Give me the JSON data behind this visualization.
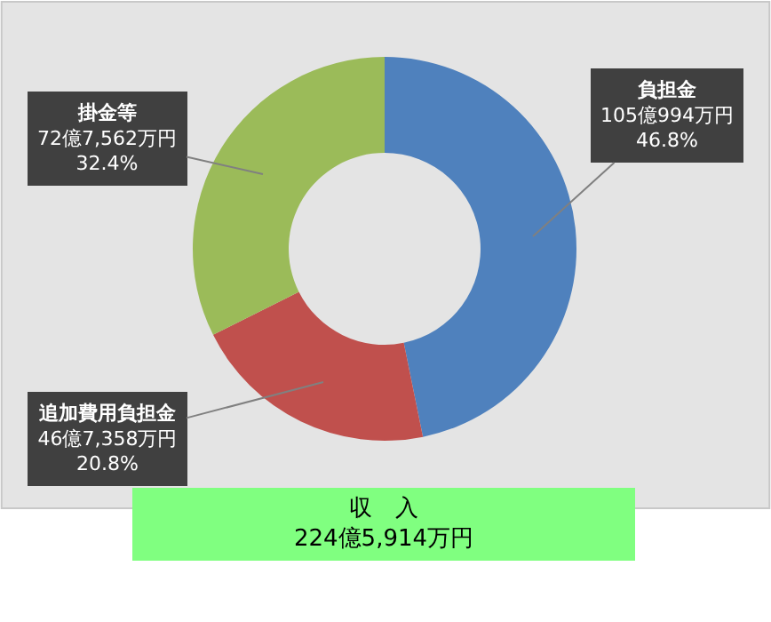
{
  "chart_data": {
    "type": "donut",
    "categories": [
      "負担金",
      "追加費用負担金",
      "掛金等"
    ],
    "values": [
      46.8,
      20.8,
      32.4
    ],
    "colors": [
      "#4f81bd",
      "#c0504d",
      "#9bbb59"
    ],
    "value_labels": [
      "105億994万円\n46.8%",
      "46億7,358万円\n20.8%",
      "72億7,562万円\n32.4%"
    ],
    "legend": false,
    "annotations": [
      "収　入\n224億5,914万円"
    ]
  }
}
